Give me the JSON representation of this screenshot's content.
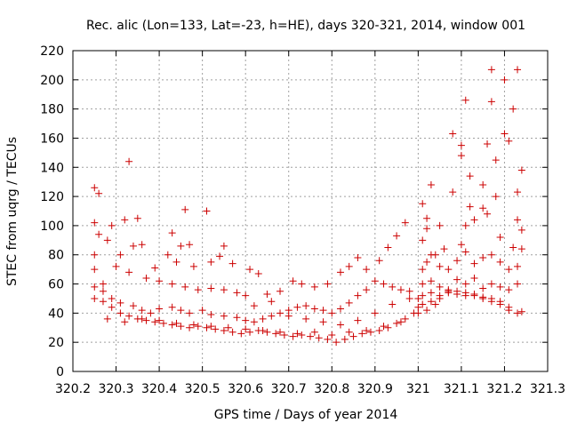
{
  "chart_data": {
    "type": "scatter",
    "title": "Rec. alic (Lon=133, Lat=-23, h=HE), days 320-321, 2014, window 001",
    "xlabel": "GPS time / Days of year 2014",
    "ylabel": "STEC from uqrg / TECUs",
    "xlim": [
      320.2,
      321.3
    ],
    "ylim": [
      0,
      220
    ],
    "xticks": [
      320.2,
      320.3,
      320.4,
      320.5,
      320.6,
      320.7,
      320.8,
      320.9,
      321,
      321.1,
      321.2,
      321.3
    ],
    "xtick_labels": [
      "320.2",
      "320.3",
      "320.4",
      "320.5",
      "320.6",
      "320.7",
      "320.8",
      "320.9",
      "321",
      "321.1",
      "321.2",
      "321.3"
    ],
    "yticks": [
      0,
      20,
      40,
      60,
      80,
      100,
      120,
      140,
      160,
      180,
      200,
      220
    ],
    "ytick_labels": [
      "0",
      "20",
      "40",
      "60",
      "80",
      "100",
      "120",
      "140",
      "160",
      "180",
      "200",
      "220"
    ],
    "grid": true,
    "marker": "plus",
    "color": "#cc0000",
    "series": [
      {
        "name": "",
        "points": [
          [
            320.25,
            126
          ],
          [
            320.26,
            122
          ],
          [
            320.33,
            144
          ],
          [
            320.35,
            105
          ],
          [
            320.46,
            111
          ],
          [
            320.51,
            110
          ],
          [
            320.25,
            102
          ],
          [
            320.29,
            100
          ],
          [
            320.32,
            104
          ],
          [
            320.36,
            87
          ],
          [
            320.43,
            95
          ],
          [
            320.47,
            87
          ],
          [
            320.45,
            86
          ],
          [
            320.55,
            86
          ],
          [
            320.25,
            80
          ],
          [
            320.26,
            94
          ],
          [
            320.28,
            90
          ],
          [
            320.31,
            80
          ],
          [
            320.34,
            86
          ],
          [
            320.39,
            71
          ],
          [
            320.42,
            80
          ],
          [
            320.44,
            75
          ],
          [
            320.48,
            72
          ],
          [
            320.52,
            75
          ],
          [
            320.54,
            79
          ],
          [
            320.57,
            74
          ],
          [
            320.61,
            70
          ],
          [
            320.63,
            67
          ],
          [
            320.25,
            70
          ],
          [
            320.27,
            60
          ],
          [
            320.3,
            72
          ],
          [
            320.33,
            68
          ],
          [
            320.37,
            64
          ],
          [
            320.4,
            62
          ],
          [
            320.43,
            60
          ],
          [
            320.46,
            58
          ],
          [
            320.49,
            56
          ],
          [
            320.52,
            57
          ],
          [
            320.55,
            56
          ],
          [
            320.58,
            54
          ],
          [
            320.6,
            52
          ],
          [
            320.65,
            53
          ],
          [
            320.68,
            55
          ],
          [
            320.71,
            62
          ],
          [
            320.73,
            60
          ],
          [
            320.76,
            58
          ],
          [
            320.79,
            60
          ],
          [
            320.82,
            68
          ],
          [
            320.84,
            72
          ],
          [
            320.86,
            78
          ],
          [
            320.88,
            70
          ],
          [
            320.91,
            76
          ],
          [
            320.93,
            85
          ],
          [
            320.95,
            93
          ],
          [
            320.97,
            102
          ],
          [
            320.25,
            58
          ],
          [
            320.27,
            55
          ],
          [
            320.29,
            50
          ],
          [
            320.31,
            47
          ],
          [
            320.34,
            45
          ],
          [
            320.36,
            42
          ],
          [
            320.38,
            40
          ],
          [
            320.4,
            43
          ],
          [
            320.43,
            44
          ],
          [
            320.45,
            42
          ],
          [
            320.47,
            40
          ],
          [
            320.5,
            42
          ],
          [
            320.52,
            39
          ],
          [
            320.55,
            38
          ],
          [
            320.58,
            37
          ],
          [
            320.6,
            35
          ],
          [
            320.62,
            34
          ],
          [
            320.64,
            36
          ],
          [
            320.66,
            38
          ],
          [
            320.68,
            40
          ],
          [
            320.7,
            42
          ],
          [
            320.72,
            44
          ],
          [
            320.74,
            45
          ],
          [
            320.76,
            43
          ],
          [
            320.78,
            42
          ],
          [
            320.8,
            40
          ],
          [
            320.82,
            43
          ],
          [
            320.84,
            47
          ],
          [
            320.86,
            52
          ],
          [
            320.88,
            56
          ],
          [
            320.9,
            62
          ],
          [
            320.92,
            60
          ],
          [
            320.94,
            58
          ],
          [
            320.96,
            56
          ],
          [
            320.98,
            55
          ],
          [
            320.25,
            50
          ],
          [
            320.27,
            48
          ],
          [
            320.29,
            44
          ],
          [
            320.31,
            40
          ],
          [
            320.33,
            38
          ],
          [
            320.35,
            36
          ],
          [
            320.37,
            35
          ],
          [
            320.39,
            34
          ],
          [
            320.41,
            33
          ],
          [
            320.43,
            32
          ],
          [
            320.45,
            31
          ],
          [
            320.47,
            30
          ],
          [
            320.49,
            31
          ],
          [
            320.51,
            30
          ],
          [
            320.53,
            29
          ],
          [
            320.55,
            28
          ],
          [
            320.57,
            27
          ],
          [
            320.59,
            26
          ],
          [
            320.61,
            27
          ],
          [
            320.63,
            28
          ],
          [
            320.65,
            27
          ],
          [
            320.67,
            26
          ],
          [
            320.69,
            25
          ],
          [
            320.71,
            24
          ],
          [
            320.73,
            25
          ],
          [
            320.75,
            24
          ],
          [
            320.77,
            23
          ],
          [
            320.79,
            22
          ],
          [
            320.81,
            20
          ],
          [
            320.83,
            22
          ],
          [
            320.85,
            24
          ],
          [
            320.87,
            26
          ],
          [
            320.89,
            27
          ],
          [
            320.91,
            28
          ],
          [
            320.93,
            30
          ],
          [
            320.95,
            33
          ],
          [
            320.97,
            36
          ],
          [
            320.99,
            40
          ],
          [
            320.28,
            36
          ],
          [
            320.32,
            34
          ],
          [
            320.36,
            36
          ],
          [
            320.4,
            35
          ],
          [
            320.44,
            33
          ],
          [
            320.48,
            32
          ],
          [
            320.52,
            31
          ],
          [
            320.56,
            30
          ],
          [
            320.6,
            29
          ],
          [
            320.64,
            28
          ],
          [
            320.68,
            27
          ],
          [
            320.72,
            26
          ],
          [
            320.76,
            27
          ],
          [
            320.8,
            25
          ],
          [
            320.84,
            27
          ],
          [
            320.88,
            28
          ],
          [
            320.92,
            31
          ],
          [
            320.96,
            34
          ],
          [
            321.0,
            40
          ],
          [
            320.62,
            45
          ],
          [
            320.66,
            48
          ],
          [
            320.7,
            38
          ],
          [
            320.74,
            36
          ],
          [
            320.78,
            34
          ],
          [
            320.82,
            32
          ],
          [
            320.86,
            35
          ],
          [
            320.9,
            40
          ],
          [
            320.94,
            46
          ],
          [
            320.98,
            50
          ],
          [
            321.0,
            50
          ],
          [
            321.01,
            115
          ],
          [
            321.02,
            105
          ],
          [
            321.03,
            128
          ],
          [
            321.05,
            100
          ],
          [
            321.08,
            163
          ],
          [
            321.1,
            155
          ],
          [
            321.1,
            148
          ],
          [
            321.11,
            186
          ],
          [
            321.12,
            134
          ],
          [
            321.15,
            128
          ],
          [
            321.16,
            156
          ],
          [
            321.17,
            207
          ],
          [
            321.17,
            185
          ],
          [
            321.18,
            145
          ],
          [
            321.2,
            200
          ],
          [
            321.2,
            163
          ],
          [
            321.21,
            158
          ],
          [
            321.22,
            180
          ],
          [
            321.23,
            207
          ],
          [
            321.23,
            123
          ],
          [
            321.24,
            138
          ],
          [
            321.01,
            90
          ],
          [
            321.02,
            98
          ],
          [
            321.04,
            80
          ],
          [
            321.06,
            84
          ],
          [
            321.08,
            123
          ],
          [
            321.1,
            87
          ],
          [
            321.11,
            100
          ],
          [
            321.12,
            113
          ],
          [
            321.13,
            104
          ],
          [
            321.15,
            112
          ],
          [
            321.16,
            108
          ],
          [
            321.18,
            120
          ],
          [
            321.19,
            92
          ],
          [
            321.22,
            85
          ],
          [
            321.23,
            104
          ],
          [
            321.24,
            97
          ],
          [
            321.24,
            84
          ],
          [
            321.01,
            70
          ],
          [
            321.02,
            75
          ],
          [
            321.03,
            80
          ],
          [
            321.05,
            72
          ],
          [
            321.07,
            70
          ],
          [
            321.09,
            76
          ],
          [
            321.11,
            82
          ],
          [
            321.13,
            74
          ],
          [
            321.15,
            78
          ],
          [
            321.17,
            80
          ],
          [
            321.19,
            75
          ],
          [
            321.21,
            70
          ],
          [
            321.23,
            72
          ],
          [
            321.01,
            60
          ],
          [
            321.03,
            62
          ],
          [
            321.05,
            58
          ],
          [
            321.07,
            56
          ],
          [
            321.09,
            63
          ],
          [
            321.11,
            60
          ],
          [
            321.13,
            64
          ],
          [
            321.15,
            57
          ],
          [
            321.17,
            60
          ],
          [
            321.19,
            58
          ],
          [
            321.21,
            56
          ],
          [
            321.23,
            60
          ],
          [
            321.01,
            52
          ],
          [
            321.03,
            54
          ],
          [
            321.05,
            50
          ],
          [
            321.07,
            55
          ],
          [
            321.09,
            53
          ],
          [
            321.11,
            52
          ],
          [
            321.13,
            52
          ],
          [
            321.15,
            51
          ],
          [
            321.17,
            50
          ],
          [
            321.19,
            48
          ],
          [
            321.21,
            44
          ],
          [
            321.23,
            40
          ],
          [
            321.01,
            46
          ],
          [
            321.03,
            48
          ],
          [
            321.05,
            52
          ],
          [
            321.07,
            54
          ],
          [
            321.09,
            55
          ],
          [
            321.11,
            54
          ],
          [
            321.13,
            53
          ],
          [
            321.15,
            50
          ],
          [
            321.17,
            48
          ],
          [
            321.19,
            46
          ],
          [
            321.21,
            42
          ],
          [
            321.24,
            41
          ],
          [
            321.0,
            44
          ],
          [
            321.02,
            42
          ],
          [
            321.04,
            46
          ]
        ]
      }
    ]
  }
}
